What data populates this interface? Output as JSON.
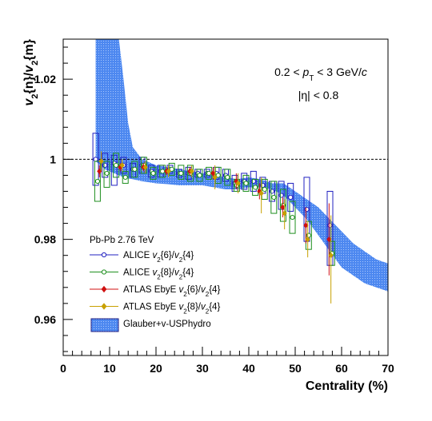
{
  "chart_data": {
    "type": "scatter",
    "xlabel": "Centrality (%)",
    "ylabel_parts": [
      "v",
      "2",
      "{n}/",
      "v",
      "2",
      "{m}"
    ],
    "xlim": [
      0,
      70
    ],
    "ylim": [
      0.951,
      1.03
    ],
    "x_ticks": [
      "0",
      "10",
      "20",
      "30",
      "40",
      "50",
      "60",
      "70"
    ],
    "y_ticks": [
      "0.96",
      "0.98",
      "1",
      "1.02"
    ],
    "y_tick_values": [
      0.96,
      0.98,
      1.0,
      1.02
    ],
    "reference_line": 1.0,
    "annotations": {
      "pt_range": [
        "0.2 < ",
        "p",
        "T",
        " < 3 GeV/",
        "c"
      ],
      "eta_range": "|η| < 0.8",
      "system": "Pb-Pb 2.76 TeV"
    },
    "legend": [
      {
        "key": "alice64",
        "parts": [
          "ALICE ",
          "v",
          "2",
          "{6}/",
          "v",
          "2",
          "{4}"
        ]
      },
      {
        "key": "alice84",
        "parts": [
          "ALICE ",
          "v",
          "2",
          "{8}/",
          "v",
          "2",
          "{4}"
        ]
      },
      {
        "key": "atlas64",
        "parts": [
          "ATLAS EbyE ",
          "v",
          "2",
          "{6}/",
          "v",
          "2",
          "{4}"
        ]
      },
      {
        "key": "atlas84",
        "parts": [
          "ATLAS EbyE ",
          "v",
          "2",
          "{8}/",
          "v",
          "2",
          "{4}"
        ]
      },
      {
        "key": "hydro",
        "parts": [
          "Glauber+v-USPhydro"
        ]
      }
    ],
    "colors": {
      "alice64": "#2020c0",
      "alice84": "#1f8f1f",
      "atlas64": "#d01010",
      "atlas84": "#c8a000",
      "band": "#4d88f0"
    },
    "hydro_band": {
      "x": [
        7,
        8,
        9,
        10,
        11,
        12,
        13,
        14,
        15,
        17,
        20,
        22.5,
        25,
        27.5,
        30,
        32.5,
        35,
        37.5,
        40,
        42.5,
        45,
        47.5,
        50,
        52.5,
        55,
        57.5,
        60,
        62.5,
        65,
        67.5,
        70
      ],
      "upper": [
        1.03,
        1.03,
        1.03,
        1.03,
        1.03,
        1.03,
        1.02,
        1.009,
        1.003,
        1.0,
        0.9985,
        0.998,
        0.9975,
        0.997,
        0.9965,
        0.996,
        0.9955,
        0.995,
        0.9955,
        0.995,
        0.994,
        0.994,
        0.992,
        0.99,
        0.988,
        0.985,
        0.982,
        0.979,
        0.977,
        0.975,
        0.974
      ],
      "lower": [
        0.9995,
        0.9985,
        0.9975,
        0.997,
        0.9965,
        0.996,
        0.9955,
        0.9952,
        0.995,
        0.9945,
        0.994,
        0.9938,
        0.9935,
        0.9935,
        0.9935,
        0.993,
        0.9925,
        0.9925,
        0.993,
        0.993,
        0.9925,
        0.991,
        0.988,
        0.985,
        0.981,
        0.977,
        0.973,
        0.971,
        0.969,
        0.968,
        0.967
      ]
    },
    "series": [
      {
        "name": "ALICE v2{6}/v2{4}",
        "key": "alice64",
        "marker": "circle-open",
        "x": [
          7,
          9,
          11,
          13,
          15,
          17,
          19,
          21,
          23,
          25,
          27,
          29,
          31,
          33,
          35,
          37,
          39,
          41,
          43,
          45,
          47,
          49,
          52.5,
          57.5
        ],
        "y": [
          1.0,
          0.9985,
          0.999,
          0.9985,
          0.9975,
          0.9985,
          0.997,
          0.997,
          0.9975,
          0.9965,
          0.9965,
          0.9965,
          0.9965,
          0.9965,
          0.996,
          0.994,
          0.9945,
          0.9945,
          0.9935,
          0.992,
          0.991,
          0.9905,
          0.9875,
          0.9835
        ],
        "box_lo": [
          0.9935,
          0.9955,
          0.9935,
          0.9965,
          0.9955,
          0.9965,
          0.9955,
          0.9955,
          0.9965,
          0.9955,
          0.995,
          0.9955,
          0.9955,
          0.995,
          0.9945,
          0.992,
          0.9925,
          0.992,
          0.9915,
          0.9895,
          0.9875,
          0.987,
          0.9795,
          0.9735
        ],
        "box_hi": [
          1.0065,
          1.0015,
          1.001,
          1.0005,
          0.999,
          1.0005,
          0.9985,
          0.9985,
          0.9985,
          0.9975,
          0.998,
          0.9975,
          0.9975,
          0.998,
          0.9975,
          0.996,
          0.9965,
          0.997,
          0.9955,
          0.9945,
          0.9945,
          0.994,
          0.9955,
          0.992
        ]
      },
      {
        "name": "ALICE v2{8}/v2{4}",
        "key": "alice84",
        "marker": "circle-open",
        "x": [
          7.4,
          9.4,
          11.4,
          13.4,
          15.4,
          17.4,
          19.4,
          21.4,
          23.4,
          25.4,
          27.4,
          29.4,
          31.4,
          33.4,
          35.4,
          37.4,
          39.4,
          41.4,
          43.4,
          45.4,
          47.4,
          49.4,
          52.9,
          57.9
        ],
        "y": [
          0.9945,
          0.9965,
          0.9985,
          0.9955,
          0.9975,
          0.9985,
          0.9965,
          0.997,
          0.9975,
          0.9965,
          0.9965,
          0.996,
          0.9965,
          0.996,
          0.9955,
          0.9935,
          0.994,
          0.993,
          0.9925,
          0.9905,
          0.9885,
          0.9855,
          0.981,
          0.9765
        ],
        "box_lo": [
          0.9895,
          0.993,
          0.9955,
          0.994,
          0.9955,
          0.9965,
          0.995,
          0.9955,
          0.996,
          0.995,
          0.9945,
          0.9945,
          0.995,
          0.994,
          0.9935,
          0.992,
          0.992,
          0.991,
          0.99,
          0.9865,
          0.9845,
          0.9815,
          0.9775,
          0.9735
        ],
        "box_hi": [
          0.9995,
          0.9995,
          1.0015,
          0.997,
          0.9995,
          1.0005,
          0.998,
          0.9985,
          0.999,
          0.9985,
          0.9985,
          0.9975,
          0.998,
          0.998,
          0.9975,
          0.995,
          0.996,
          0.995,
          0.995,
          0.9945,
          0.9925,
          0.9895,
          0.9845,
          0.9795
        ]
      },
      {
        "name": "ATLAS EbyE v2{6}/v2{4}",
        "key": "atlas64",
        "marker": "diamond",
        "x": [
          7.8,
          12.3,
          17.3,
          22.3,
          27.3,
          32.3,
          37.3,
          42.3,
          47.3,
          52.3,
          57.3
        ],
        "y": [
          0.997,
          0.998,
          0.998,
          0.997,
          0.997,
          0.9965,
          0.9945,
          0.992,
          0.988,
          0.9835,
          0.98
        ],
        "err_lo": [
          0.9955,
          0.997,
          0.997,
          0.996,
          0.996,
          0.995,
          0.9925,
          0.99,
          0.9855,
          0.979,
          0.971
        ],
        "err_hi": [
          0.9985,
          0.999,
          0.999,
          0.998,
          0.998,
          0.998,
          0.9965,
          0.994,
          0.9905,
          0.988,
          0.989
        ]
      },
      {
        "name": "ATLAS EbyE v2{8}/v2{4}",
        "key": "atlas84",
        "marker": "diamond",
        "x": [
          8.2,
          12.7,
          17.7,
          22.7,
          27.7,
          32.7,
          37.7,
          42.7,
          47.7,
          52.7,
          57.7
        ],
        "y": [
          0.9995,
          0.9985,
          0.998,
          0.997,
          0.997,
          0.9955,
          0.994,
          0.9915,
          0.9865,
          0.98,
          0.976
        ],
        "err_lo": [
          0.997,
          0.997,
          0.9965,
          0.9955,
          0.9955,
          0.9925,
          0.9915,
          0.9865,
          0.9825,
          0.9755,
          0.964
        ],
        "err_hi": [
          1.002,
          1.0,
          0.9995,
          0.9985,
          0.9985,
          0.9985,
          0.9965,
          0.9955,
          0.99,
          0.9845,
          0.986
        ]
      }
    ]
  }
}
